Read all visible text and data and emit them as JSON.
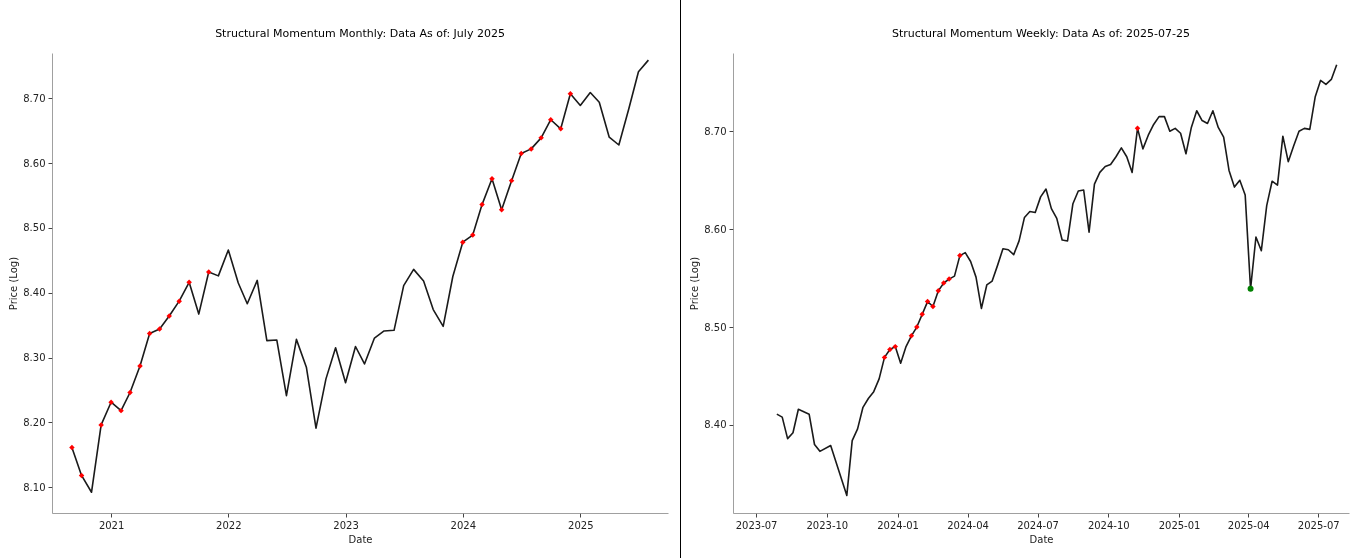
{
  "chart_data": [
    {
      "type": "line",
      "title": "Structural Momentum Monthly: Data     As of: July 2025",
      "xlabel": "Date",
      "ylabel": "Price (Log)",
      "x": [
        "2020-09",
        "2020-10",
        "2020-11",
        "2020-12",
        "2021-01",
        "2021-02",
        "2021-03",
        "2021-04",
        "2021-05",
        "2021-06",
        "2021-07",
        "2021-08",
        "2021-09",
        "2021-10",
        "2021-11",
        "2021-12",
        "2022-01",
        "2022-02",
        "2022-03",
        "2022-04",
        "2022-05",
        "2022-06",
        "2022-07",
        "2022-08",
        "2022-09",
        "2022-10",
        "2022-11",
        "2022-12",
        "2023-01",
        "2023-02",
        "2023-03",
        "2023-04",
        "2023-05",
        "2023-06",
        "2023-07",
        "2023-08",
        "2023-09",
        "2023-10",
        "2023-11",
        "2023-12",
        "2024-01",
        "2024-02",
        "2024-03",
        "2024-04",
        "2024-05",
        "2024-06",
        "2024-07",
        "2024-08",
        "2024-09",
        "2024-10",
        "2024-11",
        "2024-12",
        "2025-01",
        "2025-02",
        "2025-03",
        "2025-04",
        "2025-05",
        "2025-06",
        "2025-07",
        "2025-08"
      ],
      "series": [
        {
          "type": "line",
          "color": "#1a1a1a",
          "marker": "none",
          "values": [
            8.161,
            8.118,
            8.092,
            8.196,
            8.231,
            8.218,
            8.246,
            8.287,
            8.337,
            8.344,
            8.364,
            8.387,
            8.416,
            8.367,
            8.432,
            8.426,
            8.466,
            8.415,
            8.383,
            8.419,
            8.326,
            8.327,
            8.241,
            8.328,
            8.285,
            8.191,
            8.267,
            8.315,
            8.261,
            8.317,
            8.29,
            8.33,
            8.341,
            8.342,
            8.411,
            8.436,
            8.418,
            8.374,
            8.348,
            8.425,
            8.478,
            8.489,
            8.536,
            8.576,
            8.528,
            8.573,
            8.615,
            8.622,
            8.639,
            8.667,
            8.653,
            8.707,
            8.689,
            8.709,
            8.694,
            8.64,
            8.628,
            8.684,
            8.741,
            8.759
          ]
        },
        {
          "type": "scatter",
          "color": "#ff0000",
          "marker": "diamond",
          "x": [
            "2020-09",
            "2020-10",
            "2020-12",
            "2021-01",
            "2021-02",
            "2021-03",
            "2021-04",
            "2021-05",
            "2021-06",
            "2021-07",
            "2021-08",
            "2021-09",
            "2021-11",
            "2024-01",
            "2024-02",
            "2024-03",
            "2024-04",
            "2024-05",
            "2024-06",
            "2024-07",
            "2024-08",
            "2024-09",
            "2024-10",
            "2024-11",
            "2024-12"
          ],
          "values": [
            8.161,
            8.118,
            8.196,
            8.231,
            8.218,
            8.246,
            8.287,
            8.337,
            8.344,
            8.364,
            8.387,
            8.416,
            8.432,
            8.478,
            8.489,
            8.536,
            8.576,
            8.528,
            8.573,
            8.615,
            8.622,
            8.639,
            8.667,
            8.653,
            8.707
          ]
        }
      ],
      "xlim": [
        "2020-07-01",
        "2025-10-01"
      ],
      "ylim": [
        8.06,
        8.77
      ],
      "xticks": [
        "2021",
        "2022",
        "2023",
        "2024",
        "2025"
      ],
      "yticks": [
        {
          "value": 8.1,
          "label": "8.10"
        },
        {
          "value": 8.2,
          "label": "8.20"
        },
        {
          "value": 8.3,
          "label": "8.30"
        },
        {
          "value": 8.4,
          "label": "8.40"
        },
        {
          "value": 8.5,
          "label": "8.50"
        },
        {
          "value": 8.6,
          "label": "8.60"
        },
        {
          "value": 8.7,
          "label": "8.70"
        }
      ]
    },
    {
      "type": "line",
      "title": "Structural Momentum Weekly: Data     As of: 2025-07-25",
      "xlabel": "Date",
      "ylabel": "Price (Log)",
      "x": [
        "2023-07-28",
        "2023-08-04",
        "2023-08-11",
        "2023-08-18",
        "2023-08-25",
        "2023-09-08",
        "2023-09-15",
        "2023-09-22",
        "2023-10-06",
        "2023-10-27",
        "2023-11-03",
        "2023-11-10",
        "2023-11-17",
        "2023-11-24",
        "2023-12-01",
        "2023-12-08",
        "2023-12-15",
        "2023-12-22",
        "2023-12-29",
        "2024-01-05",
        "2024-01-12",
        "2024-01-19",
        "2024-01-26",
        "2024-02-02",
        "2024-02-09",
        "2024-02-16",
        "2024-02-23",
        "2024-03-01",
        "2024-03-08",
        "2024-03-15",
        "2024-03-22",
        "2024-03-29",
        "2024-04-05",
        "2024-04-12",
        "2024-04-19",
        "2024-04-26",
        "2024-05-03",
        "2024-05-10",
        "2024-05-17",
        "2024-05-24",
        "2024-05-31",
        "2024-06-07",
        "2024-06-14",
        "2024-06-21",
        "2024-06-28",
        "2024-07-05",
        "2024-07-12",
        "2024-07-19",
        "2024-07-26",
        "2024-08-02",
        "2024-08-09",
        "2024-08-16",
        "2024-08-23",
        "2024-08-30",
        "2024-09-06",
        "2024-09-13",
        "2024-09-20",
        "2024-09-27",
        "2024-10-04",
        "2024-10-11",
        "2024-10-18",
        "2024-10-25",
        "2024-11-01",
        "2024-11-08",
        "2024-11-15",
        "2024-11-22",
        "2024-11-29",
        "2024-12-06",
        "2024-12-13",
        "2024-12-20",
        "2024-12-27",
        "2025-01-03",
        "2025-01-10",
        "2025-01-17",
        "2025-01-24",
        "2025-01-31",
        "2025-02-07",
        "2025-02-14",
        "2025-02-21",
        "2025-02-28",
        "2025-03-07",
        "2025-03-14",
        "2025-03-21",
        "2025-03-28",
        "2025-04-04",
        "2025-04-11",
        "2025-04-18",
        "2025-04-25",
        "2025-05-02",
        "2025-05-09",
        "2025-05-16",
        "2025-05-23",
        "2025-05-30",
        "2025-06-06",
        "2025-06-13",
        "2025-06-20",
        "2025-06-27",
        "2025-07-04",
        "2025-07-11",
        "2025-07-18",
        "2025-07-25"
      ],
      "series": [
        {
          "type": "line",
          "color": "#1a1a1a",
          "marker": "none",
          "values": [
            8.411,
            8.408,
            8.386,
            8.392,
            8.416,
            8.411,
            8.38,
            8.373,
            8.379,
            8.328,
            8.384,
            8.396,
            8.418,
            8.427,
            8.434,
            8.447,
            8.469,
            8.477,
            8.48,
            8.463,
            8.48,
            8.491,
            8.5,
            8.513,
            8.526,
            8.521,
            8.537,
            8.545,
            8.549,
            8.552,
            8.573,
            8.576,
            8.567,
            8.551,
            8.519,
            8.543,
            8.547,
            8.563,
            8.58,
            8.579,
            8.574,
            8.588,
            8.612,
            8.618,
            8.617,
            8.633,
            8.641,
            8.621,
            8.611,
            8.589,
            8.588,
            8.626,
            8.639,
            8.64,
            8.597,
            8.646,
            8.658,
            8.664,
            8.666,
            8.674,
            8.683,
            8.674,
            8.658,
            8.703,
            8.682,
            8.696,
            8.707,
            8.715,
            8.715,
            8.7,
            8.703,
            8.698,
            8.677,
            8.704,
            8.721,
            8.711,
            8.708,
            8.721,
            8.704,
            8.694,
            8.66,
            8.643,
            8.65,
            8.635,
            8.539,
            8.592,
            8.578,
            8.624,
            8.649,
            8.645,
            8.695,
            8.669,
            8.685,
            8.7,
            8.703,
            8.702,
            8.735,
            8.752,
            8.748,
            8.753,
            8.768
          ]
        },
        {
          "type": "scatter",
          "color": "#ff0000",
          "marker": "diamond",
          "x": [
            "2023-12-15",
            "2023-12-22",
            "2023-12-29",
            "2024-01-19",
            "2024-01-26",
            "2024-02-02",
            "2024-02-09",
            "2024-02-16",
            "2024-02-23",
            "2024-03-01",
            "2024-03-08",
            "2024-03-22",
            "2024-11-08"
          ],
          "values": [
            8.469,
            8.477,
            8.48,
            8.491,
            8.5,
            8.513,
            8.526,
            8.521,
            8.537,
            8.545,
            8.549,
            8.573,
            8.703
          ]
        },
        {
          "type": "scatter",
          "color": "#008000",
          "marker": "circle",
          "x": [
            "2025-04-04"
          ],
          "values": [
            8.539
          ]
        }
      ],
      "xlim": [
        "2023-06-01",
        "2025-08-10"
      ],
      "ylim": [
        8.31,
        8.78
      ],
      "xticks": [
        "2023-07",
        "2023-10",
        "2024-01",
        "2024-04",
        "2024-07",
        "2024-10",
        "2025-01",
        "2025-04",
        "2025-07"
      ],
      "yticks": [
        {
          "value": 8.4,
          "label": "8.40"
        },
        {
          "value": 8.5,
          "label": "8.50"
        },
        {
          "value": 8.6,
          "label": "8.60"
        },
        {
          "value": 8.7,
          "label": "8.70"
        }
      ]
    }
  ]
}
